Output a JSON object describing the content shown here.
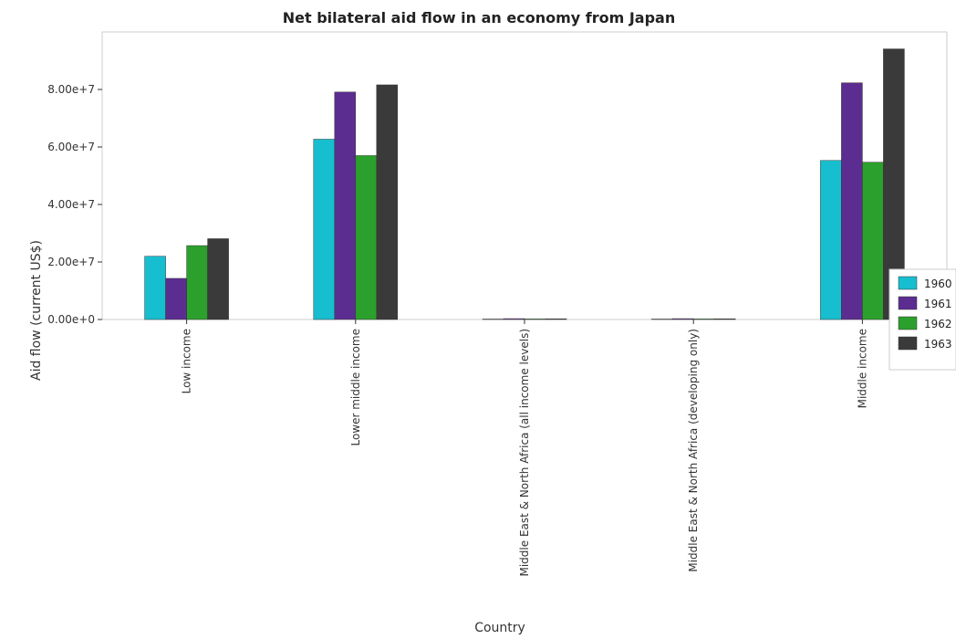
{
  "chart_data": {
    "type": "bar",
    "title": "Net bilateral aid flow in an economy from Japan",
    "xlabel": "Country",
    "ylabel": "Aid flow (current US$)",
    "categories": [
      "Low income",
      "Lower middle income",
      "Middle East & North Africa (all income levels)",
      "Middle East & North Africa (developing only)",
      "Middle income"
    ],
    "ylim": [
      0,
      100000000
    ],
    "yticks": [
      0,
      20000000,
      40000000,
      60000000,
      80000000
    ],
    "ytick_labels": [
      "0.00e+0",
      "2.00e+7",
      "4.00e+7",
      "6.00e+7",
      "8.00e+7"
    ],
    "grid": false,
    "legend_position": "right",
    "series": [
      {
        "name": "1960",
        "color": "#17becf",
        "values": [
          22000000,
          62700000,
          100000,
          100000,
          55300000
        ]
      },
      {
        "name": "1961",
        "color": "#5c2d91",
        "values": [
          14300000,
          79100000,
          300000,
          300000,
          82300000
        ]
      },
      {
        "name": "1962",
        "color": "#2ca02c",
        "values": [
          25700000,
          57000000,
          200000,
          200000,
          54700000
        ]
      },
      {
        "name": "1963",
        "color": "#3a3a3a",
        "values": [
          28100000,
          81600000,
          250000,
          250000,
          94100000
        ]
      }
    ]
  }
}
